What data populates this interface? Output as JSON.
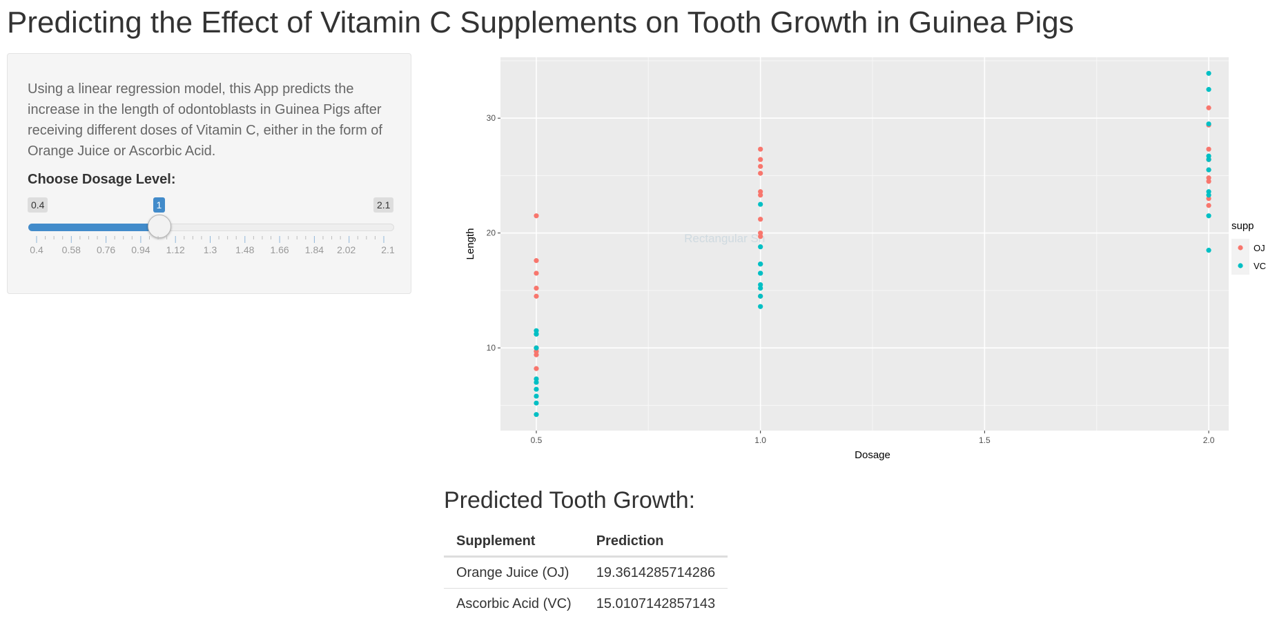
{
  "app": {
    "title": "Predicting the Effect of Vitamin C Supplements on Tooth Growth in Guinea Pigs"
  },
  "sidebar": {
    "description": "Using a linear regression model, this App predicts the increase in the length of odontoblasts in Guinea Pigs after receiving different doses of Vitamin C, either in the form of Orange Juice or Ascorbic Acid.",
    "slider": {
      "label": "Choose Dosage Level:",
      "min": 0.4,
      "max": 2.1,
      "value": 1,
      "min_label": "0.4",
      "max_label": "2.1",
      "value_label": "1",
      "tick_labels": [
        "0.4",
        "0.58",
        "0.76",
        "0.94",
        "1.12",
        "1.3",
        "1.48",
        "1.66",
        "1.84",
        "2.02",
        "2.1"
      ],
      "fill_color": "#428bca"
    }
  },
  "chart_data": {
    "type": "scatter",
    "title": "",
    "xlabel": "Dosage",
    "ylabel": "Length",
    "xlim": [
      0.42,
      2.08
    ],
    "ylim": [
      2.8,
      35.3
    ],
    "x_ticks": [
      0.5,
      1.0,
      1.5,
      2.0
    ],
    "x_tick_labels": [
      "0.5",
      "1.0",
      "1.5",
      "2.0"
    ],
    "y_ticks": [
      10,
      20,
      30
    ],
    "y_tick_labels": [
      "10",
      "20",
      "30"
    ],
    "grid": true,
    "background": "#ebebeb",
    "legend": {
      "title": "supp",
      "position": "right"
    },
    "series": [
      {
        "name": "OJ",
        "color": "#f8766d",
        "points": [
          [
            0.5,
            15.2
          ],
          [
            0.5,
            21.5
          ],
          [
            0.5,
            17.6
          ],
          [
            0.5,
            9.7
          ],
          [
            0.5,
            14.5
          ],
          [
            0.5,
            10.0
          ],
          [
            0.5,
            8.2
          ],
          [
            0.5,
            9.4
          ],
          [
            0.5,
            16.5
          ],
          [
            0.5,
            9.7
          ],
          [
            1.0,
            19.7
          ],
          [
            1.0,
            23.3
          ],
          [
            1.0,
            23.6
          ],
          [
            1.0,
            26.4
          ],
          [
            1.0,
            20.0
          ],
          [
            1.0,
            25.2
          ],
          [
            1.0,
            25.8
          ],
          [
            1.0,
            21.2
          ],
          [
            1.0,
            14.5
          ],
          [
            1.0,
            27.3
          ],
          [
            2.0,
            25.5
          ],
          [
            2.0,
            26.4
          ],
          [
            2.0,
            22.4
          ],
          [
            2.0,
            24.5
          ],
          [
            2.0,
            24.8
          ],
          [
            2.0,
            30.9
          ],
          [
            2.0,
            26.4
          ],
          [
            2.0,
            27.3
          ],
          [
            2.0,
            29.4
          ],
          [
            2.0,
            23.0
          ]
        ]
      },
      {
        "name": "VC",
        "color": "#00bfc4",
        "points": [
          [
            0.5,
            4.2
          ],
          [
            0.5,
            11.5
          ],
          [
            0.5,
            7.3
          ],
          [
            0.5,
            5.8
          ],
          [
            0.5,
            6.4
          ],
          [
            0.5,
            10.0
          ],
          [
            0.5,
            11.2
          ],
          [
            0.5,
            11.2
          ],
          [
            0.5,
            5.2
          ],
          [
            0.5,
            7.0
          ],
          [
            1.0,
            16.5
          ],
          [
            1.0,
            16.5
          ],
          [
            1.0,
            15.2
          ],
          [
            1.0,
            17.3
          ],
          [
            1.0,
            22.5
          ],
          [
            1.0,
            17.3
          ],
          [
            1.0,
            13.6
          ],
          [
            1.0,
            14.5
          ],
          [
            1.0,
            18.8
          ],
          [
            1.0,
            15.5
          ],
          [
            2.0,
            23.6
          ],
          [
            2.0,
            18.5
          ],
          [
            2.0,
            33.9
          ],
          [
            2.0,
            25.5
          ],
          [
            2.0,
            26.4
          ],
          [
            2.0,
            32.5
          ],
          [
            2.0,
            26.7
          ],
          [
            2.0,
            21.5
          ],
          [
            2.0,
            23.3
          ],
          [
            2.0,
            29.5
          ]
        ]
      }
    ]
  },
  "overlay": {
    "text": "Rectangular Sn"
  },
  "prediction": {
    "title": "Predicted Tooth Growth:",
    "headers": {
      "supplement": "Supplement",
      "prediction": "Prediction"
    },
    "rows": [
      {
        "supplement": "Orange Juice (OJ)",
        "prediction": "19.3614285714286"
      },
      {
        "supplement": "Ascorbic Acid (VC)",
        "prediction": "15.0107142857143"
      }
    ]
  }
}
